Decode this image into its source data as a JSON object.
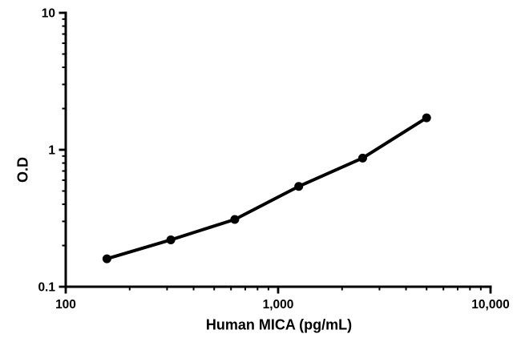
{
  "figure": {
    "background_color": "#ffffff",
    "foreground_color": "#000000"
  },
  "chart_data": {
    "type": "line",
    "title": "",
    "xlabel": "Human MICA (pg/mL)",
    "ylabel": "O.D",
    "x_scale": "log",
    "y_scale": "log",
    "xlim": [
      100,
      10000
    ],
    "ylim": [
      0.1,
      10
    ],
    "x": [
      156.25,
      312.5,
      625,
      1250,
      2500,
      5000
    ],
    "y": [
      0.16,
      0.22,
      0.31,
      0.54,
      0.87,
      1.71
    ],
    "x_major_ticks": [
      {
        "value": 100,
        "label": "100"
      },
      {
        "value": 1000,
        "label": "1,000"
      },
      {
        "value": 10000,
        "label": "10,000"
      }
    ],
    "y_major_ticks": [
      {
        "value": 0.1,
        "label": "0.1"
      },
      {
        "value": 1,
        "label": "1"
      },
      {
        "value": 10,
        "label": "10"
      }
    ],
    "minor_ticks": true,
    "grid": false,
    "legend": false,
    "line_color": "#000000",
    "marker": "circle",
    "marker_color": "#000000",
    "axis_color": "#000000"
  }
}
